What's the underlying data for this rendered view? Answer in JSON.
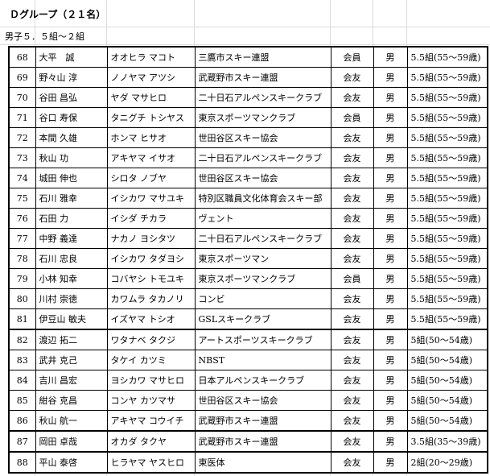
{
  "header": {
    "title": "Ｄグループ（２１名）",
    "subtitle": "男子５．５組～２組"
  },
  "table": {
    "rows": [
      [
        68,
        "大平　誠",
        "オオヒラ マコト",
        "三鷹市スキー連盟",
        "会員",
        "男",
        "5.5組(55～59歳)"
      ],
      [
        69,
        "野々山 淳",
        "ノノヤマ アツシ",
        "武蔵野市スキー連盟",
        "会友",
        "男",
        "5.5組(55～59歳)"
      ],
      [
        70,
        "谷田 昌弘",
        "ヤダ マサヒロ",
        "二十日石アルペンスキークラブ",
        "会友",
        "男",
        "5.5組(55～59歳)"
      ],
      [
        71,
        "谷口 寿保",
        "タニグチ トシヤス",
        "東京スポーツマンクラブ",
        "会員",
        "男",
        "5.5組(55～59歳)"
      ],
      [
        72,
        "本間 久雄",
        "ホンマ ヒサオ",
        "世田谷区スキー協会",
        "会友",
        "男",
        "5.5組(55～59歳)"
      ],
      [
        73,
        "秋山 功",
        "アキヤマ イサオ",
        "二十日石アルペンスキークラブ",
        "会友",
        "男",
        "5.5組(55～59歳)"
      ],
      [
        74,
        "城田 伸也",
        "シロタ ノブヤ",
        "世田谷区スキー協会",
        "会友",
        "男",
        "5.5組(55～59歳)"
      ],
      [
        75,
        "石川 雅幸",
        "イシカワ マサユキ",
        "特別区職員文化体育会スキー部",
        "会友",
        "男",
        "5.5組(55～59歳)"
      ],
      [
        76,
        "石田 力",
        "イシダ チカラ",
        "ヴェント",
        "会友",
        "男",
        "5.5組(55～59歳)"
      ],
      [
        77,
        "中野 義達",
        "ナカノ ヨシタツ",
        "二十日石アルペンスキークラブ",
        "会友",
        "男",
        "5.5組(55～59歳)"
      ],
      [
        78,
        "石川 忠良",
        "イシカワ タダヨシ",
        "東京スポーツマン",
        "会友",
        "男",
        "5.5組(55～59歳)"
      ],
      [
        79,
        "小林 知幸",
        "コバヤシ トモユキ",
        "東京スポーツマンクラブ",
        "会員",
        "男",
        "5.5組(55～59歳)"
      ],
      [
        80,
        "川村 崇徳",
        "カワムラ タカノリ",
        "コンビ",
        "会友",
        "男",
        "5.5組(55～59歳)"
      ],
      [
        81,
        "伊豆山 敏夫",
        "イズヤマ トシオ",
        "GSLスキークラブ",
        "会友",
        "男",
        "5.5組(55～59歳)"
      ],
      [
        82,
        "渡辺 拓二",
        "ワタナベ タクジ",
        "アートスポーツスキークラブ",
        "会友",
        "男",
        "5組(50～54歳)"
      ],
      [
        83,
        "武井 克己",
        "タケイ カツミ",
        "NBST",
        "会友",
        "男",
        "5組(50～54歳)"
      ],
      [
        84,
        "吉川 昌宏",
        "ヨシカワ マサヒロ",
        "日本アルペンスキークラブ",
        "会友",
        "男",
        "5組(50～54歳)"
      ],
      [
        85,
        "紺谷 克昌",
        "コンヤ カツマサ",
        "世田谷区スキー協会",
        "会友",
        "男",
        "5組(50～54歳)"
      ],
      [
        86,
        "秋山 航一",
        "アキヤマ コウイチ",
        "武蔵野市スキー連盟",
        "会友",
        "男",
        "5組(50～54歳)"
      ],
      [
        87,
        "岡田 卓哉",
        "オカダ タクヤ",
        "武蔵野市スキー連盟",
        "会友",
        "男",
        "3.5組(35～39歳)"
      ],
      [
        88,
        "平山 泰啓",
        "ヒラヤマ ヤスヒロ",
        "東医体",
        "会友",
        "男",
        "2組(20～29歳)"
      ]
    ]
  }
}
